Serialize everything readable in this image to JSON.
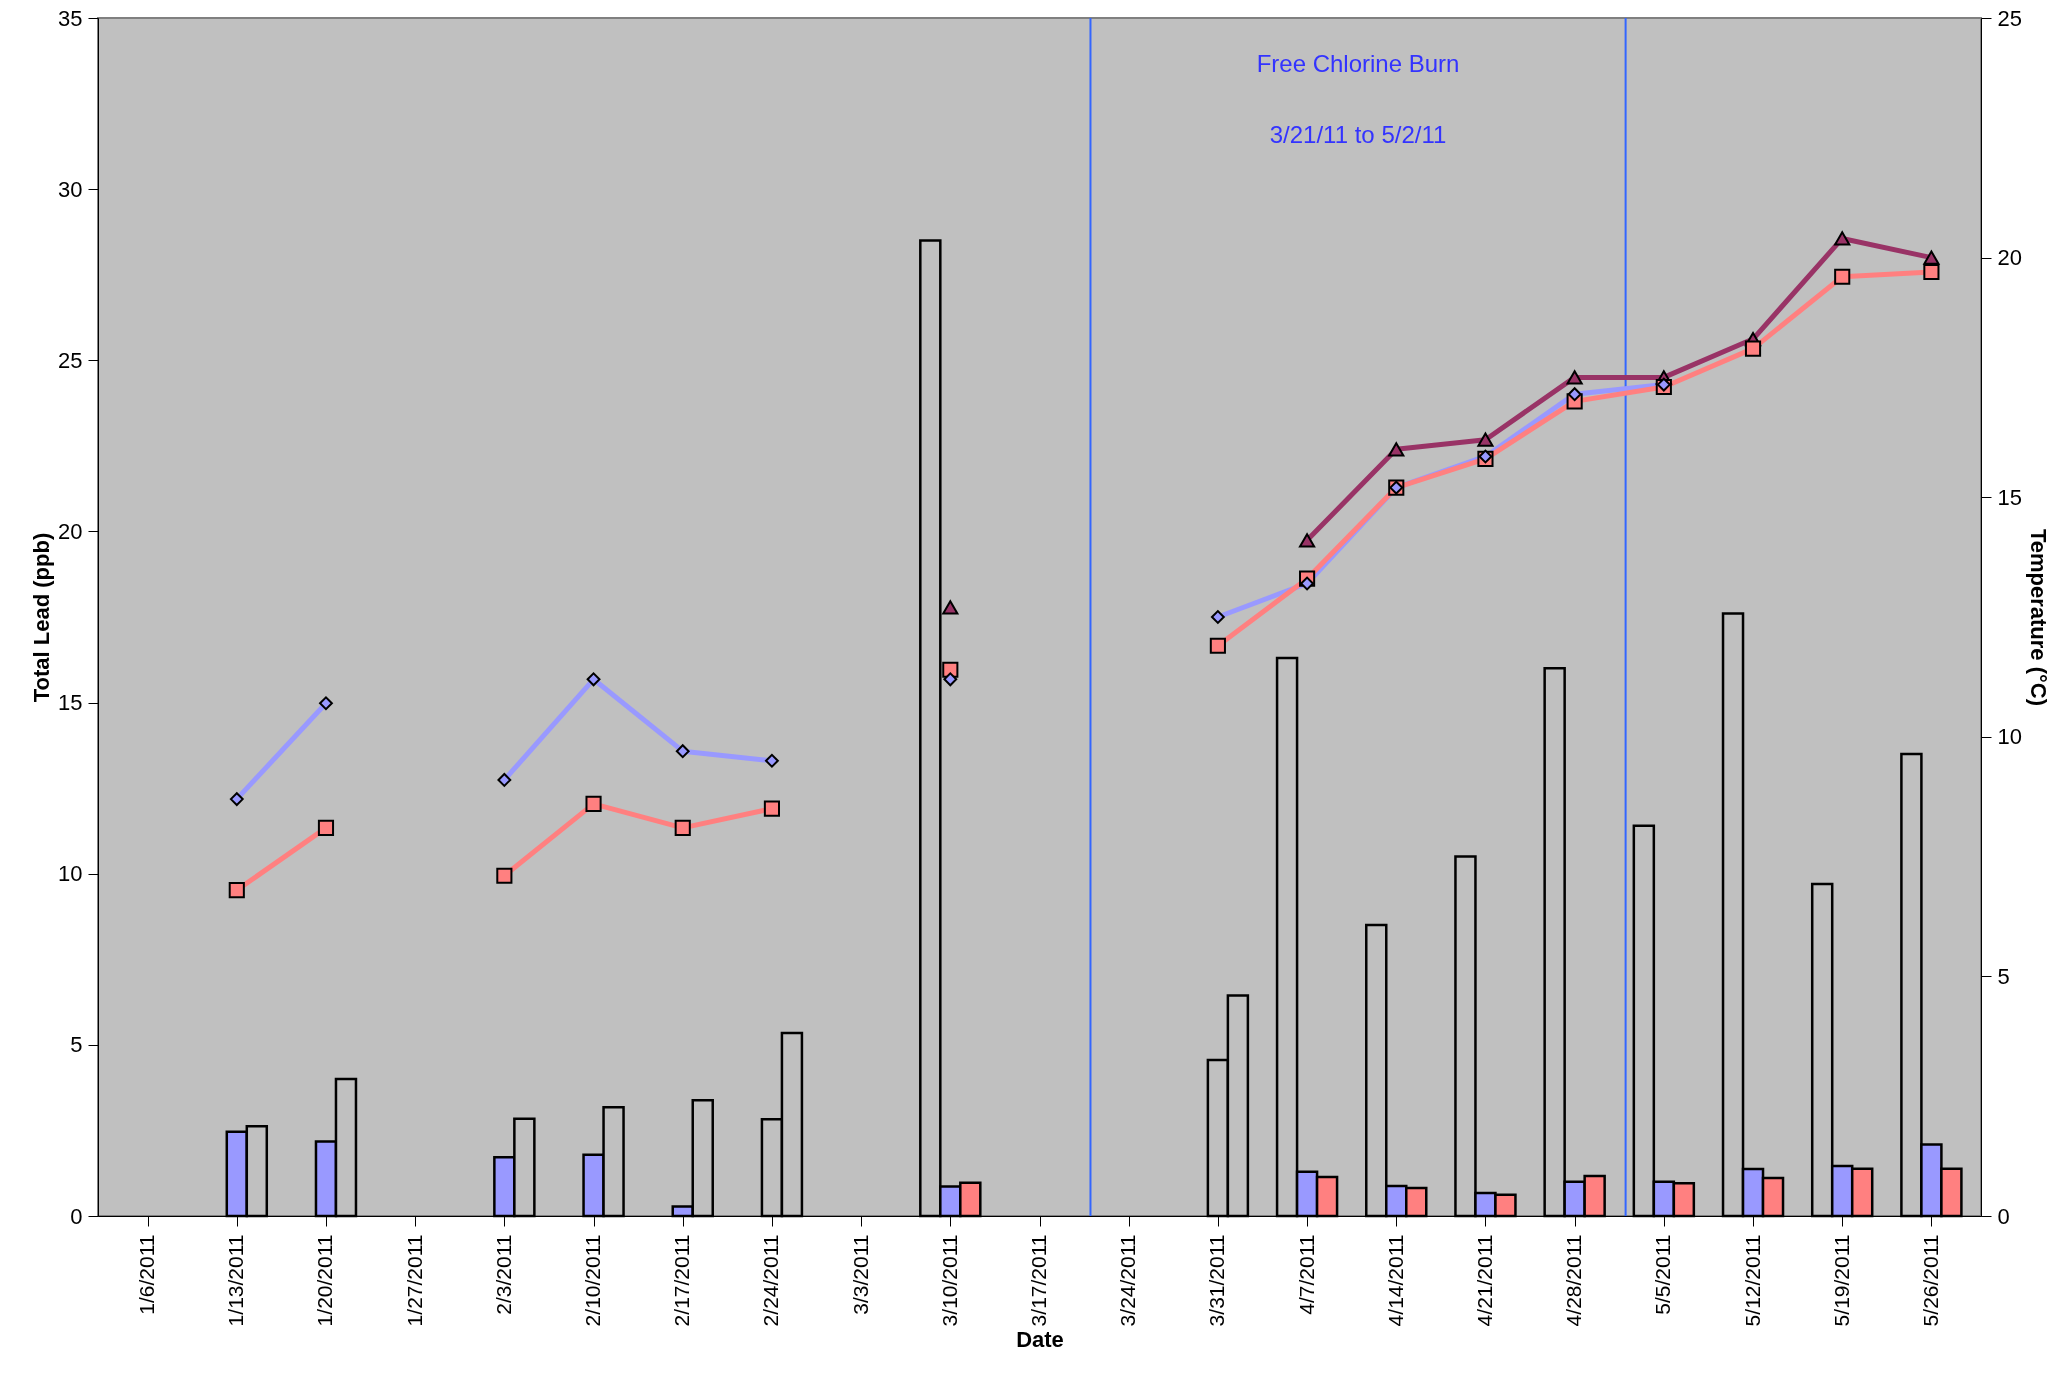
{
  "chart_data": {
    "type": "bar",
    "xlabel": "Date",
    "ylabel": "Total Lead (ppb)",
    "y2label": "Temperature (°C)",
    "x": [
      "2011-01-13",
      "2011-01-20",
      "2011-01-27",
      "2011-02-03",
      "2011-02-10",
      "2011-02-17",
      "2011-02-24",
      "2011-03-03",
      "2011-03-10",
      "2011-03-17",
      "2011-03-24",
      "2011-03-31",
      "2011-04-07",
      "2011-04-14",
      "2011-04-21",
      "2011-04-28",
      "2011-05-05",
      "2011-05-12",
      "2011-05-19",
      "2011-05-26"
    ],
    "xlim": [
      "2011-01-02T12:00",
      "2011-05-29T12:00"
    ],
    "xticks": [
      {
        "value": "2011-01-06",
        "label": "1/6/2011"
      },
      {
        "value": "2011-01-13",
        "label": "1/13/2011"
      },
      {
        "value": "2011-01-20",
        "label": "1/20/2011"
      },
      {
        "value": "2011-01-27",
        "label": "1/27/2011"
      },
      {
        "value": "2011-02-03",
        "label": "2/3/2011"
      },
      {
        "value": "2011-02-10",
        "label": "2/10/2011"
      },
      {
        "value": "2011-02-17",
        "label": "2/17/2011"
      },
      {
        "value": "2011-02-24",
        "label": "2/24/2011"
      },
      {
        "value": "2011-03-03",
        "label": "3/3/2011"
      },
      {
        "value": "2011-03-10",
        "label": "3/10/2011"
      },
      {
        "value": "2011-03-17",
        "label": "3/17/2011"
      },
      {
        "value": "2011-03-24",
        "label": "3/24/2011"
      },
      {
        "value": "2011-03-31",
        "label": "3/31/2011"
      },
      {
        "value": "2011-04-07",
        "label": "4/7/2011"
      },
      {
        "value": "2011-04-14",
        "label": "4/14/2011"
      },
      {
        "value": "2011-04-21",
        "label": "4/21/2011"
      },
      {
        "value": "2011-04-28",
        "label": "4/28/2011"
      },
      {
        "value": "2011-05-05",
        "label": "5/5/2011"
      },
      {
        "value": "2011-05-12",
        "label": "5/12/2011"
      },
      {
        "value": "2011-05-19",
        "label": "5/19/2011"
      },
      {
        "value": "2011-05-26",
        "label": "5/26/2011"
      }
    ],
    "ylim": [
      0,
      35
    ],
    "yticks": [
      0,
      5,
      10,
      15,
      20,
      25,
      30,
      35
    ],
    "y2lim": [
      0,
      25
    ],
    "y2ticks": [
      0,
      5,
      10,
      15,
      20,
      25
    ],
    "series": [
      {
        "color": "#c0c0c0",
        "values": [
          null,
          null,
          null,
          null,
          null,
          null,
          null,
          null,
          28.5,
          null,
          null,
          null,
          16.3,
          8.5,
          10.5,
          16.0,
          11.4,
          17.6,
          9.7,
          13.5
        ]
      },
      {
        "colors": [
          "#9999ff",
          "#9999ff",
          "#9999ff",
          "#9999ff",
          "#9999ff",
          "#9999ff",
          "#c0c0c0",
          "#9999ff",
          "#9999ff",
          "#9999ff",
          "#9999ff",
          "#c0c0c0",
          "#9999ff",
          "#9999ff",
          "#9999ff",
          "#9999ff",
          "#9999ff",
          "#9999ff",
          "#9999ff",
          "#9999ff"
        ],
        "values": [
          2.46,
          2.18,
          null,
          1.72,
          1.79,
          0.28,
          2.83,
          null,
          0.86,
          null,
          null,
          4.56,
          1.29,
          0.88,
          0.67,
          1.0,
          1.0,
          1.37,
          1.46,
          2.09
        ]
      },
      {
        "colors": [
          "#c0c0c0",
          "#c0c0c0",
          "#ff8080",
          "#c0c0c0",
          "#c0c0c0",
          "#c0c0c0",
          "#c0c0c0",
          "#ff8080",
          "#ff8080",
          "#ff8080",
          "#ff8080",
          "#c0c0c0",
          "#ff8080",
          "#ff8080",
          "#ff8080",
          "#ff8080",
          "#ff8080",
          "#ff8080",
          "#ff8080",
          "#ff8080"
        ],
        "values": [
          2.62,
          4.0,
          null,
          2.84,
          3.18,
          3.38,
          5.35,
          null,
          0.97,
          null,
          null,
          6.44,
          1.14,
          0.82,
          0.62,
          1.17,
          0.96,
          1.11,
          1.38,
          1.38
        ]
      },
      {
        "type": "line",
        "axis": "y2",
        "marker": "diamond",
        "color": "#9999ff",
        "values": [
          8.7,
          10.7,
          null,
          9.1,
          11.2,
          9.7,
          9.5,
          null,
          11.2,
          null,
          null,
          12.5,
          13.2,
          15.2,
          15.85,
          17.15,
          17.35,
          null,
          null,
          null
        ]
      },
      {
        "type": "line",
        "axis": "y2",
        "marker": "square",
        "color": "#ff8080",
        "values": [
          6.8,
          8.1,
          null,
          7.1,
          8.6,
          8.1,
          8.5,
          null,
          11.4,
          null,
          null,
          11.9,
          13.3,
          15.2,
          15.8,
          17.0,
          17.3,
          18.1,
          19.6,
          19.7
        ]
      },
      {
        "type": "line",
        "axis": "y2",
        "marker": "triangle",
        "color": "#993366",
        "values": [
          null,
          null,
          null,
          null,
          null,
          null,
          null,
          null,
          12.7,
          null,
          null,
          null,
          14.1,
          16.0,
          16.2,
          17.5,
          17.5,
          18.3,
          20.4,
          20.0
        ]
      }
    ],
    "ref_lines": [
      {
        "axis": "x",
        "value": "2011-03-21",
        "color": "#3366ff"
      },
      {
        "axis": "x",
        "value": "2011-05-02",
        "color": "#3366ff"
      }
    ],
    "annotations": [
      "Free Chlorine Burn",
      "3/21/11  to  5/2/11"
    ]
  }
}
